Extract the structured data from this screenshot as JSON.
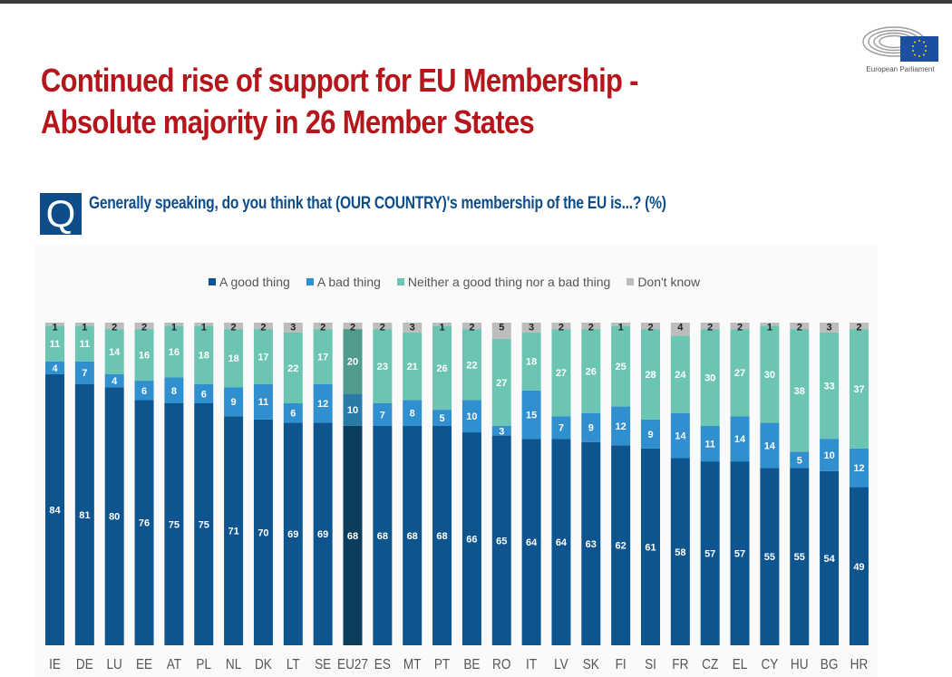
{
  "header": {
    "title_line1": "Continued rise of support for EU Membership -",
    "title_line2": "Absolute majority in 26 Member States",
    "logo_text": "European Parliament"
  },
  "question": {
    "badge": "Q",
    "text": "Generally speaking, do you think that (OUR COUNTRY)'s membership of the EU is...? (%)"
  },
  "colors": {
    "good": "#0e5590",
    "bad": "#2f8fcf",
    "neither": "#6cc4b2",
    "dontknow": "#bdbdbd",
    "eu27_good": "#0a3e5c",
    "eu27_bad": "#2a7aa8",
    "eu27_neither": "#4f9c8c",
    "title": "#b4161b"
  },
  "chart_data": {
    "type": "bar",
    "stacked": true,
    "percent": true,
    "title": "Generally speaking, do you think that (OUR COUNTRY)'s membership of the EU is...? (%)",
    "xlabel": "",
    "ylabel": "",
    "ylim": [
      0,
      100
    ],
    "legend_position": "top-center",
    "highlight": "EU27",
    "categories": [
      "IE",
      "DE",
      "LU",
      "EE",
      "AT",
      "PL",
      "NL",
      "DK",
      "LT",
      "SE",
      "EU27",
      "ES",
      "MT",
      "PT",
      "BE",
      "RO",
      "IT",
      "LV",
      "SK",
      "FI",
      "SI",
      "FR",
      "CZ",
      "EL",
      "CY",
      "HU",
      "BG",
      "HR"
    ],
    "series": [
      {
        "name": "A good thing",
        "key": "good",
        "values": [
          84,
          81,
          80,
          76,
          75,
          75,
          71,
          70,
          69,
          69,
          68,
          68,
          68,
          68,
          66,
          65,
          64,
          64,
          63,
          62,
          61,
          58,
          57,
          57,
          55,
          55,
          54,
          49
        ]
      },
      {
        "name": "A bad thing",
        "key": "bad",
        "values": [
          4,
          7,
          4,
          6,
          8,
          6,
          9,
          11,
          6,
          12,
          10,
          7,
          8,
          5,
          10,
          3,
          15,
          7,
          9,
          12,
          9,
          14,
          11,
          14,
          14,
          5,
          10,
          12
        ]
      },
      {
        "name": "Neither a good thing nor a bad thing",
        "key": "neither",
        "values": [
          11,
          11,
          14,
          16,
          16,
          18,
          18,
          17,
          22,
          17,
          20,
          23,
          21,
          26,
          22,
          27,
          18,
          27,
          26,
          25,
          28,
          24,
          30,
          27,
          30,
          38,
          33,
          37
        ]
      },
      {
        "name": "Don't know",
        "key": "dontknow",
        "values": [
          1,
          1,
          2,
          2,
          1,
          1,
          2,
          2,
          3,
          2,
          2,
          2,
          3,
          1,
          2,
          5,
          3,
          2,
          2,
          1,
          2,
          4,
          2,
          2,
          1,
          2,
          3,
          2
        ]
      }
    ]
  }
}
